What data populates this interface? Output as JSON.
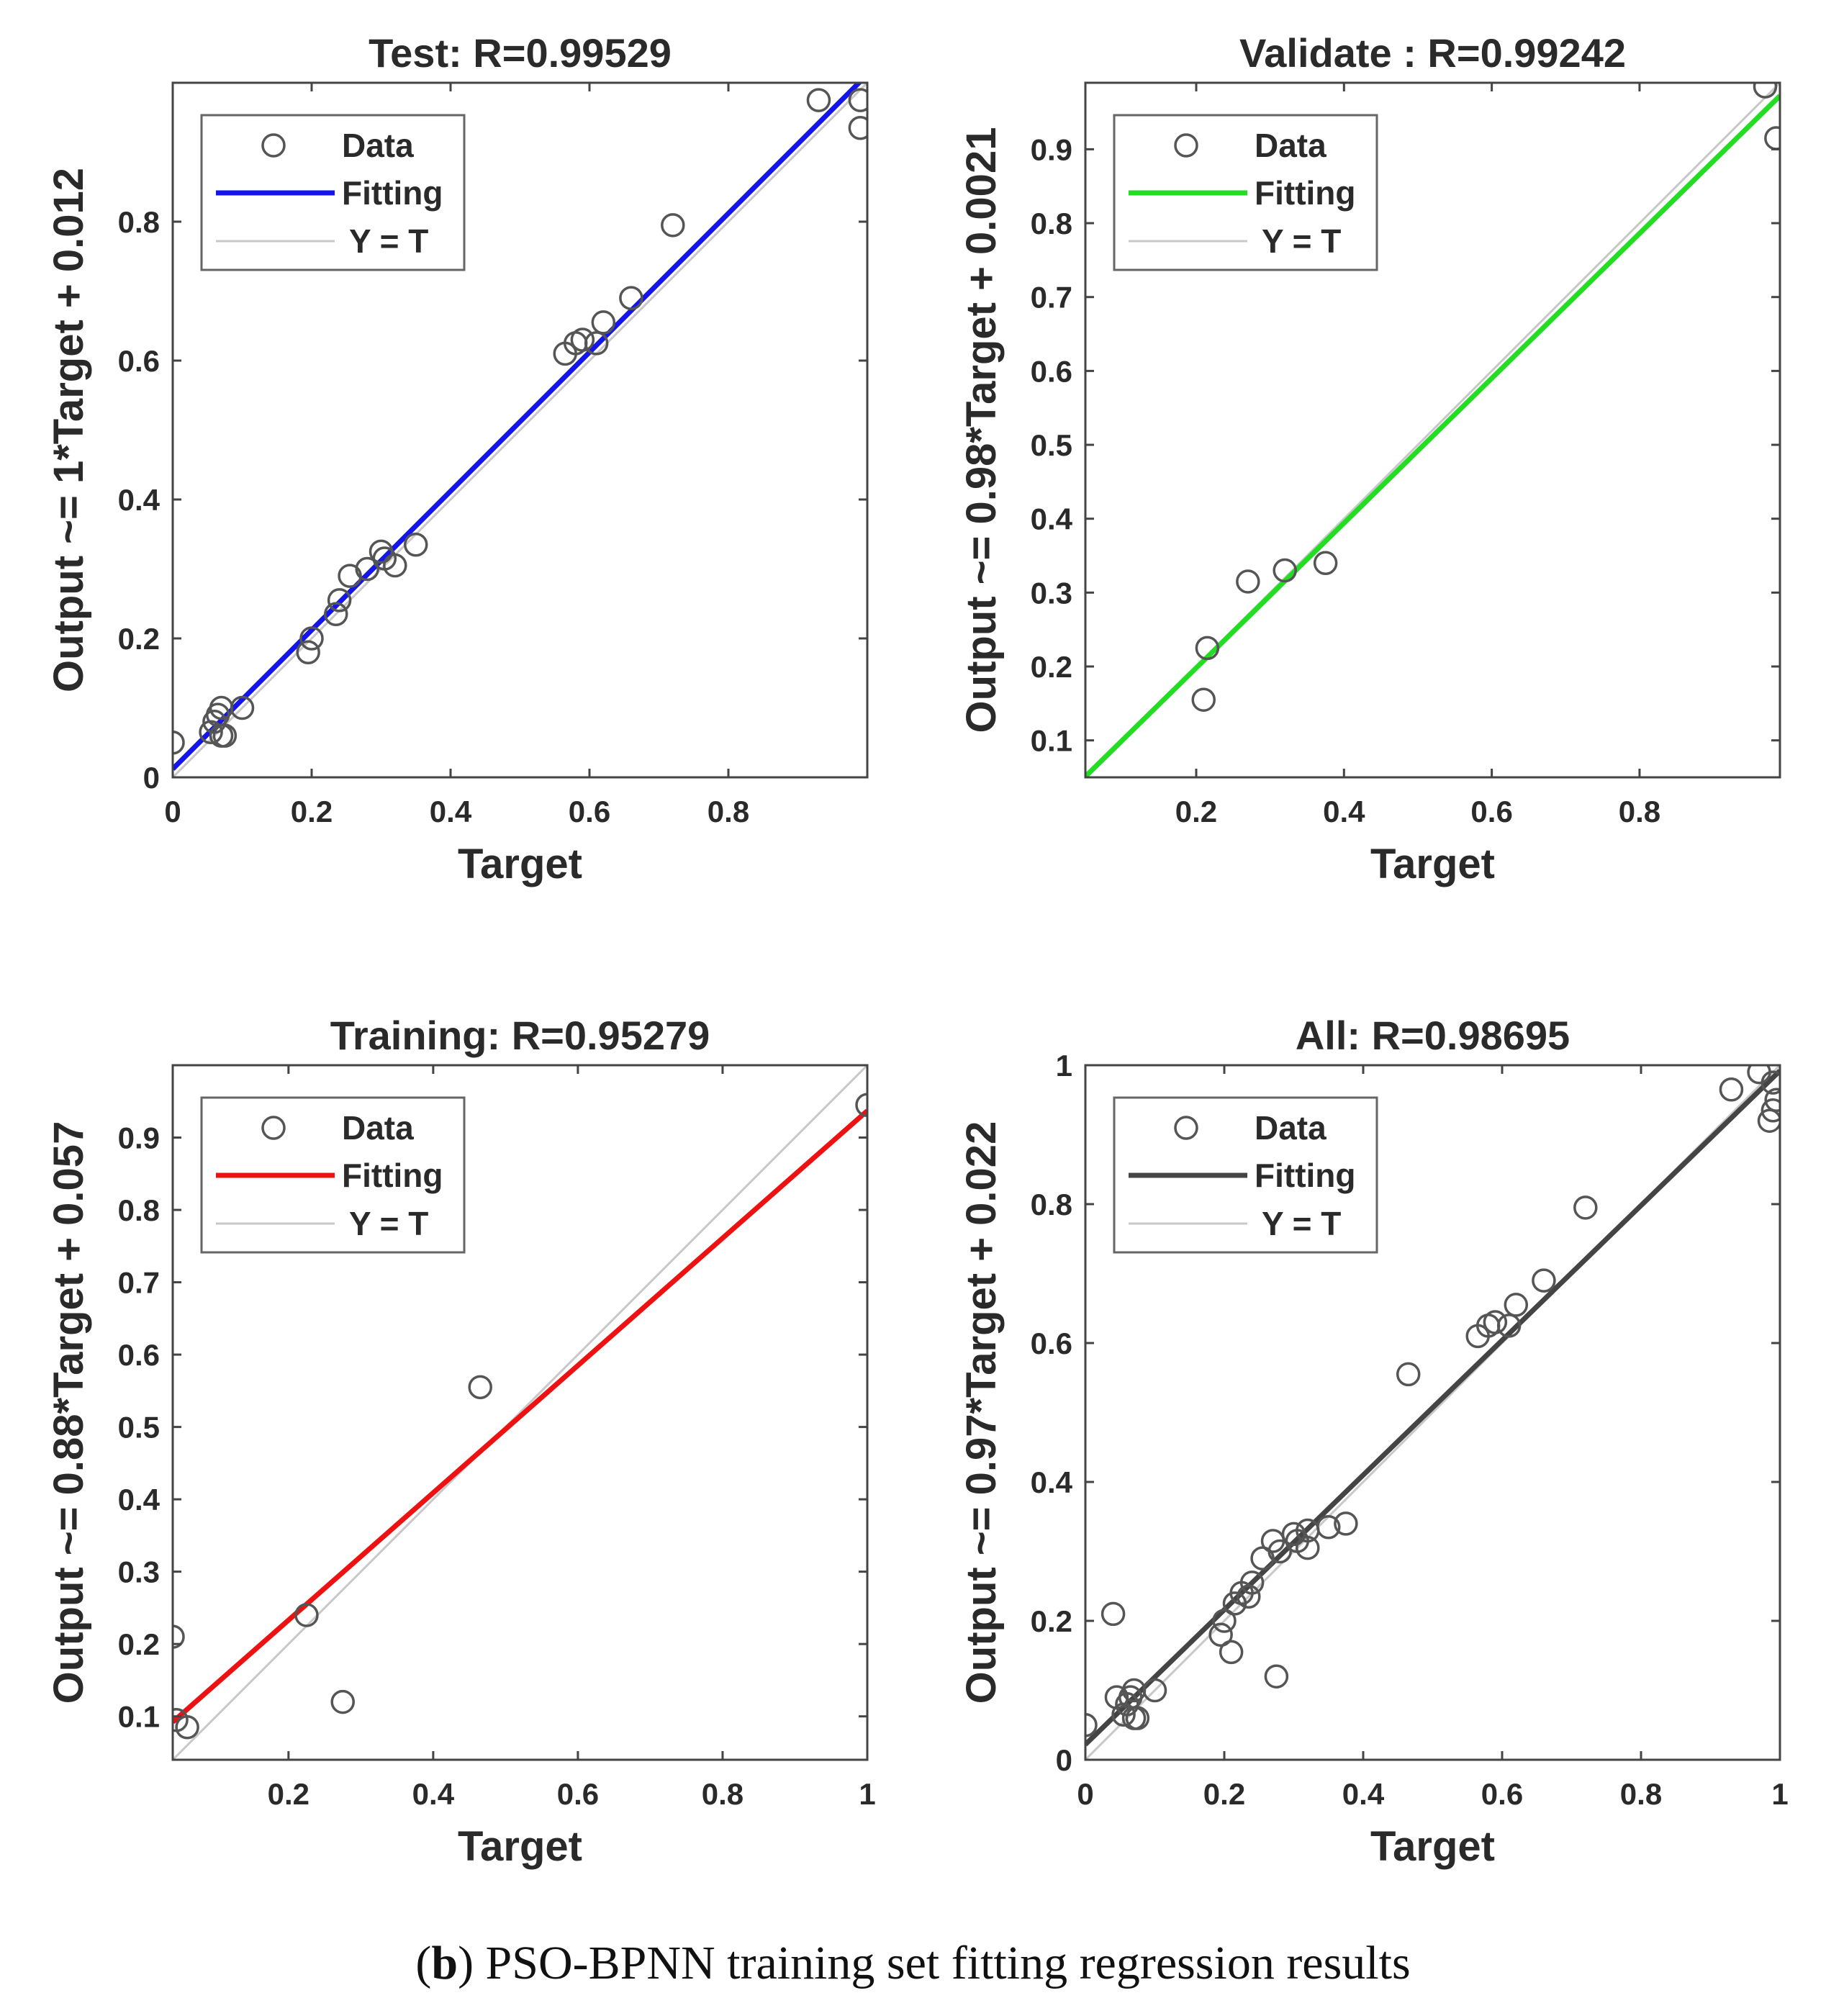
{
  "caption": {
    "letter": "b",
    "text": ") PSO-BPNN training set fitting regression results",
    "open_paren": "("
  },
  "chart_data": [
    {
      "type": "scatter",
      "title": "Test: R=0.99529",
      "xlabel": "Target",
      "ylabel": "Output ~= 1*Target + 0.012",
      "xlim": [
        0,
        1
      ],
      "ylim": [
        0,
        1
      ],
      "xticks": [
        0,
        0.2,
        0.4,
        0.6,
        0.8
      ],
      "yticks": [
        0,
        0.2,
        0.4,
        0.6,
        0.8
      ],
      "tick_labels_x": [
        "0",
        "0.2",
        "0.4",
        "0.6",
        "0.8"
      ],
      "tick_labels_y": [
        "0",
        "0.2",
        "0.4",
        "0.6",
        "0.8"
      ],
      "fit": {
        "slope": 1.0,
        "intercept": 0.012,
        "color": "#1414ee"
      },
      "legend": [
        "Data",
        "Fitting",
        "Y = T"
      ],
      "legend_position": "top-left",
      "points": [
        [
          0.0,
          0.05
        ],
        [
          0.055,
          0.065
        ],
        [
          0.06,
          0.08
        ],
        [
          0.065,
          0.09
        ],
        [
          0.07,
          0.1
        ],
        [
          0.07,
          0.06
        ],
        [
          0.075,
          0.06
        ],
        [
          0.1,
          0.1
        ],
        [
          0.195,
          0.18
        ],
        [
          0.2,
          0.2
        ],
        [
          0.235,
          0.235
        ],
        [
          0.24,
          0.255
        ],
        [
          0.255,
          0.29
        ],
        [
          0.28,
          0.3
        ],
        [
          0.3,
          0.325
        ],
        [
          0.305,
          0.315
        ],
        [
          0.32,
          0.305
        ],
        [
          0.35,
          0.335
        ],
        [
          0.565,
          0.61
        ],
        [
          0.58,
          0.625
        ],
        [
          0.59,
          0.63
        ],
        [
          0.61,
          0.625
        ],
        [
          0.62,
          0.655
        ],
        [
          0.66,
          0.69
        ],
        [
          0.72,
          0.795
        ],
        [
          0.93,
          0.975
        ],
        [
          0.99,
          0.975
        ],
        [
          0.99,
          0.935
        ]
      ]
    },
    {
      "type": "scatter",
      "title": "Validate : R=0.99242",
      "xlabel": "Target",
      "ylabel": "Output  ~= 0.98*Target + 0.0021",
      "xlim": [
        0.05,
        0.99
      ],
      "ylim": [
        0.05,
        0.99
      ],
      "xticks": [
        0.2,
        0.4,
        0.6,
        0.8
      ],
      "yticks": [
        0.1,
        0.2,
        0.3,
        0.4,
        0.5,
        0.6,
        0.7,
        0.8,
        0.9
      ],
      "tick_labels_x": [
        "0.2",
        "0.4",
        "0.6",
        "0.8"
      ],
      "tick_labels_y": [
        "0.1",
        "0.2",
        "0.3",
        "0.4",
        "0.5",
        "0.6",
        "0.7",
        "0.8",
        "0.9"
      ],
      "fit": {
        "slope": 0.98,
        "intercept": 0.0021,
        "color": "#22dd22"
      },
      "legend": [
        "Data",
        "Fitting",
        "Y = T"
      ],
      "legend_position": "top-left",
      "points": [
        [
          0.21,
          0.155
        ],
        [
          0.215,
          0.225
        ],
        [
          0.27,
          0.315
        ],
        [
          0.32,
          0.33
        ],
        [
          0.375,
          0.34
        ],
        [
          0.97,
          0.985
        ],
        [
          0.985,
          0.915
        ]
      ]
    },
    {
      "type": "scatter",
      "title": "Training: R=0.95279",
      "xlabel": "Target",
      "ylabel": "Output  ~= 0.88*Target + 0.057",
      "xlim": [
        0.04,
        1
      ],
      "ylim": [
        0.04,
        1
      ],
      "xticks": [
        0.2,
        0.4,
        0.6,
        0.8,
        1
      ],
      "yticks": [
        0.1,
        0.2,
        0.3,
        0.4,
        0.5,
        0.6,
        0.7,
        0.8,
        0.9
      ],
      "tick_labels_x": [
        "0.2",
        "0.4",
        "0.6",
        "0.8",
        "1"
      ],
      "tick_labels_y": [
        "0.1",
        "0.2",
        "0.3",
        "0.4",
        "0.5",
        "0.6",
        "0.7",
        "0.8",
        "0.9"
      ],
      "fit": {
        "slope": 0.88,
        "intercept": 0.057,
        "color": "#ee1111"
      },
      "legend": [
        "Data",
        "Fitting",
        "Y = T"
      ],
      "legend_position": "top-left",
      "points": [
        [
          0.04,
          0.21
        ],
        [
          0.045,
          0.095
        ],
        [
          0.06,
          0.085
        ],
        [
          0.225,
          0.24
        ],
        [
          0.275,
          0.12
        ],
        [
          0.465,
          0.555
        ],
        [
          1.0,
          0.945
        ]
      ]
    },
    {
      "type": "scatter",
      "title": "All: R=0.98695",
      "xlabel": "Target",
      "ylabel": "Output ~= 0.97*Target + 0.022",
      "xlim": [
        0,
        1
      ],
      "ylim": [
        0,
        1
      ],
      "xticks": [
        0,
        0.2,
        0.4,
        0.6,
        0.8,
        1
      ],
      "yticks": [
        0,
        0.2,
        0.4,
        0.6,
        0.8,
        1
      ],
      "tick_labels_x": [
        "0",
        "0.2",
        "0.4",
        "0.6",
        "0.8",
        "1"
      ],
      "tick_labels_y": [
        "0",
        "0.2",
        "0.4",
        "0.6",
        "0.8",
        "1"
      ],
      "fit": {
        "slope": 0.97,
        "intercept": 0.022,
        "color": "#444444"
      },
      "legend": [
        "Data",
        "Fitting",
        "Y = T"
      ],
      "legend_position": "top-left",
      "points": [
        [
          0.0,
          0.05
        ],
        [
          0.04,
          0.21
        ],
        [
          0.045,
          0.09
        ],
        [
          0.055,
          0.065
        ],
        [
          0.06,
          0.08
        ],
        [
          0.065,
          0.09
        ],
        [
          0.07,
          0.1
        ],
        [
          0.07,
          0.06
        ],
        [
          0.075,
          0.06
        ],
        [
          0.1,
          0.1
        ],
        [
          0.195,
          0.18
        ],
        [
          0.2,
          0.2
        ],
        [
          0.21,
          0.155
        ],
        [
          0.215,
          0.225
        ],
        [
          0.225,
          0.24
        ],
        [
          0.235,
          0.235
        ],
        [
          0.24,
          0.255
        ],
        [
          0.255,
          0.29
        ],
        [
          0.27,
          0.315
        ],
        [
          0.275,
          0.12
        ],
        [
          0.28,
          0.3
        ],
        [
          0.3,
          0.325
        ],
        [
          0.305,
          0.315
        ],
        [
          0.32,
          0.33
        ],
        [
          0.32,
          0.305
        ],
        [
          0.35,
          0.335
        ],
        [
          0.375,
          0.34
        ],
        [
          0.465,
          0.555
        ],
        [
          0.565,
          0.61
        ],
        [
          0.58,
          0.625
        ],
        [
          0.59,
          0.63
        ],
        [
          0.61,
          0.625
        ],
        [
          0.62,
          0.655
        ],
        [
          0.66,
          0.69
        ],
        [
          0.72,
          0.795
        ],
        [
          0.93,
          0.965
        ],
        [
          0.97,
          0.99
        ],
        [
          0.985,
          0.92
        ],
        [
          0.99,
          0.975
        ],
        [
          0.99,
          0.935
        ],
        [
          0.995,
          0.95
        ]
      ]
    }
  ]
}
